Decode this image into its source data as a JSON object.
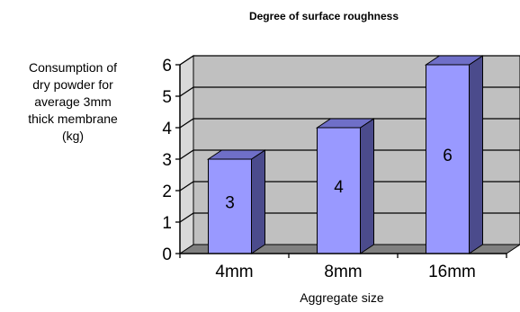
{
  "chart_data": {
    "type": "bar",
    "title": "Degree of surface roughness",
    "xlabel": "Aggregate size",
    "ylabel_lines": [
      "Consumption of",
      "dry powder for",
      "average 3mm",
      "thick membrane",
      "(kg)"
    ],
    "categories": [
      "4mm",
      "8mm",
      "16mm"
    ],
    "values": [
      3,
      4,
      6
    ],
    "data_labels": [
      "3",
      "4",
      "6"
    ],
    "yticks": [
      "0",
      "1",
      "2",
      "3",
      "4",
      "5",
      "6"
    ],
    "ylim": [
      0,
      6
    ],
    "grid": true,
    "legend": "none",
    "style": "3d",
    "colors": {
      "bar_front": "#9999ff",
      "bar_side": "#4b4b8c",
      "bar_top": "#6f6fc8",
      "plot_back_wall": "#c0c0c0",
      "plot_floor": "#808080"
    }
  }
}
